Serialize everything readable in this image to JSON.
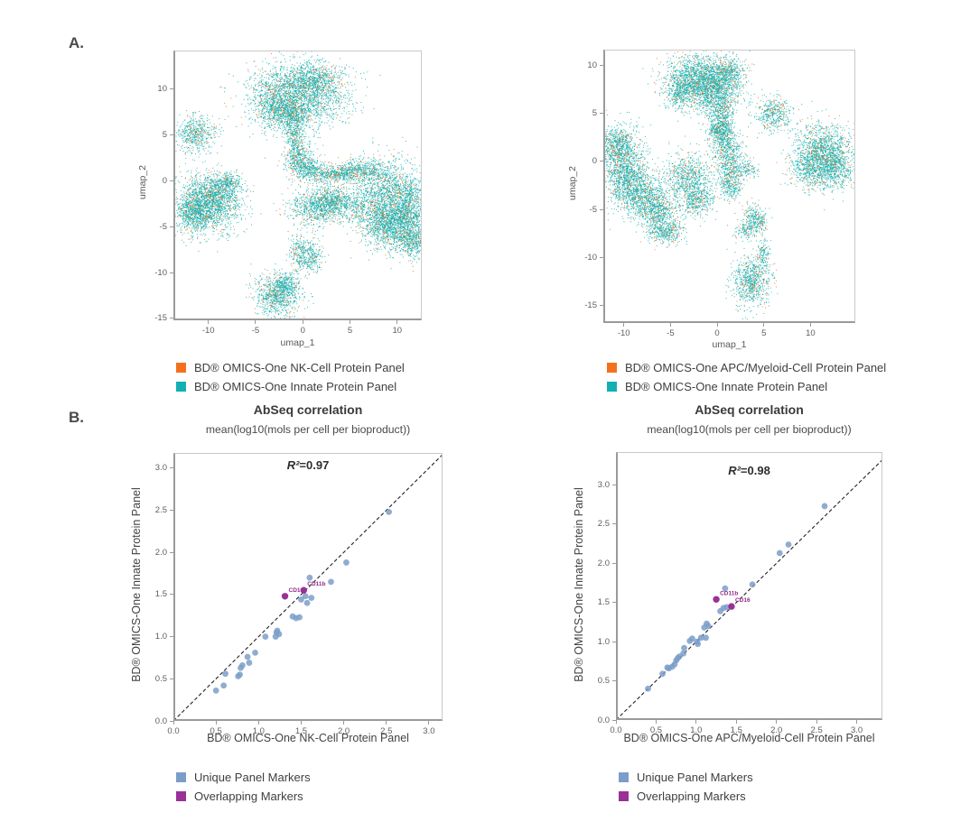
{
  "section_labels": {
    "a": "A.",
    "b": "B."
  },
  "colors": {
    "orange": "#f4701d",
    "teal": "#12b0b2",
    "blue": "#7b9dc9",
    "purple": "#9a3197",
    "marker_label": "#8e2a8a",
    "dashed_line": "#222222"
  },
  "chart_data": [
    {
      "id": "umapA",
      "type": "scatter",
      "kind": "umap",
      "xlabel": "umap_1",
      "ylabel": "umap_2",
      "x_ticks": [
        -10,
        -5,
        0,
        5,
        10
      ],
      "y_ticks": [
        10,
        5,
        0,
        -5,
        -10,
        -15
      ],
      "x_range": [
        -13.7,
        12.6
      ],
      "y_range": [
        -15.2,
        14.2
      ],
      "series": [
        {
          "name": "BD® OMICS-One NK-Cell Protein Panel",
          "color": "#f4701d"
        },
        {
          "name": "BD® OMICS-One Innate Protein Panel",
          "color": "#12b0b2"
        }
      ],
      "orange_fraction": 0.16,
      "point_clusters": [
        [
          -0.5,
          9.5,
          2.6,
          1.7,
          2400
        ],
        [
          1.2,
          11.3,
          1.3,
          0.9,
          450
        ],
        [
          -2.6,
          7.9,
          1.2,
          1.1,
          600
        ],
        [
          -1.0,
          6.6,
          0.7,
          0.9,
          280
        ],
        [
          -11.6,
          5.3,
          1.1,
          0.95,
          520
        ],
        [
          -10.3,
          -2.6,
          1.7,
          1.6,
          1700
        ],
        [
          -11.7,
          -3.7,
          0.9,
          1.0,
          450
        ],
        [
          -9.0,
          -1.2,
          1.0,
          0.9,
          420
        ],
        [
          -8.1,
          -0.2,
          0.7,
          0.45,
          180
        ],
        [
          -0.9,
          4.3,
          0.5,
          1.0,
          240
        ],
        [
          -0.4,
          2.4,
          0.9,
          0.8,
          330
        ],
        [
          0.4,
          1.2,
          0.9,
          0.6,
          300
        ],
        [
          2.6,
          0.7,
          1.2,
          0.55,
          330
        ],
        [
          4.6,
          0.9,
          1.2,
          0.5,
          280
        ],
        [
          6.5,
          1.2,
          1.2,
          0.6,
          320
        ],
        [
          1.5,
          -2.9,
          1.5,
          1.0,
          850
        ],
        [
          3.3,
          -2.2,
          0.9,
          0.7,
          330
        ],
        [
          5.5,
          -3.0,
          1.0,
          0.8,
          240
        ],
        [
          9.0,
          -1.4,
          1.8,
          1.9,
          1500
        ],
        [
          11.4,
          -2.6,
          1.0,
          1.4,
          480
        ],
        [
          8.1,
          -4.6,
          1.2,
          1.2,
          560
        ],
        [
          10.4,
          -5.1,
          1.5,
          1.4,
          1100
        ],
        [
          11.7,
          -6.9,
          0.8,
          0.8,
          300
        ],
        [
          -0.6,
          -7.9,
          0.45,
          1.1,
          200
        ],
        [
          0.9,
          -8.3,
          0.6,
          0.9,
          280
        ],
        [
          -2.8,
          -12.6,
          1.2,
          1.1,
          850
        ],
        [
          -1.9,
          -11.3,
          0.6,
          0.6,
          200
        ]
      ]
    },
    {
      "id": "umapB",
      "type": "scatter",
      "kind": "umap",
      "xlabel": "umap_1",
      "ylabel": "umap_2",
      "x_ticks": [
        -10,
        -5,
        0,
        5,
        10
      ],
      "y_ticks": [
        10,
        5,
        0,
        -5,
        -10,
        -15
      ],
      "x_range": [
        -12.2,
        14.8
      ],
      "y_range": [
        -16.8,
        11.6
      ],
      "series": [
        {
          "name": "BD® OMICS-One APC/Myeloid-Cell Protein Panel",
          "color": "#f4701d"
        },
        {
          "name": "BD® OMICS-One Innate Protein Panel",
          "color": "#12b0b2"
        }
      ],
      "orange_fraction": 0.16,
      "point_clusters": [
        [
          -2.8,
          8.6,
          1.5,
          1.3,
          1150
        ],
        [
          -0.4,
          7.8,
          1.5,
          1.4,
          1300
        ],
        [
          0.9,
          9.4,
          1.0,
          0.8,
          380
        ],
        [
          -4.1,
          7.0,
          0.8,
          0.8,
          280
        ],
        [
          0.3,
          5.5,
          0.7,
          0.9,
          280
        ],
        [
          0.5,
          3.7,
          0.55,
          0.8,
          200
        ],
        [
          5.9,
          4.9,
          0.95,
          0.9,
          430
        ],
        [
          11.3,
          0.9,
          1.6,
          1.6,
          1400
        ],
        [
          12.5,
          -0.6,
          1.0,
          1.2,
          480
        ],
        [
          10.0,
          -0.9,
          1.0,
          1.0,
          380
        ],
        [
          -10.5,
          0.4,
          1.2,
          1.7,
          950
        ],
        [
          -11.2,
          2.0,
          0.8,
          0.8,
          280
        ],
        [
          -9.7,
          -2.3,
          1.2,
          1.3,
          750
        ],
        [
          -7.8,
          -3.9,
          1.3,
          1.2,
          750
        ],
        [
          -6.3,
          -5.6,
          1.0,
          1.0,
          480
        ],
        [
          -5.6,
          -7.4,
          0.95,
          0.7,
          330
        ],
        [
          -3.3,
          -1.8,
          1.2,
          1.4,
          750
        ],
        [
          -2.2,
          -4.0,
          0.9,
          0.9,
          380
        ],
        [
          0.8,
          1.8,
          0.8,
          1.0,
          380
        ],
        [
          1.2,
          -0.5,
          0.85,
          1.2,
          430
        ],
        [
          1.5,
          -2.6,
          0.6,
          0.8,
          230
        ],
        [
          0.0,
          3.3,
          0.6,
          0.6,
          190
        ],
        [
          3.2,
          -0.8,
          0.5,
          0.45,
          110
        ],
        [
          3.8,
          -5.7,
          0.5,
          0.6,
          140
        ],
        [
          3.2,
          -7.1,
          0.7,
          0.6,
          190
        ],
        [
          4.6,
          -6.4,
          0.45,
          0.45,
          90
        ],
        [
          4.9,
          -9.7,
          0.35,
          0.85,
          130
        ],
        [
          3.6,
          -12.6,
          1.0,
          1.3,
          750
        ]
      ]
    },
    {
      "id": "corrA",
      "type": "scatter",
      "kind": "correlation",
      "title": "AbSeq correlation",
      "subtitle": "mean(log10(mols per cell per bioproduct))",
      "annotation": "R²=0.97",
      "xlabel": "BD® OMICS-One NK-Cell Protein Panel",
      "ylabel": "BD® OMICS-One Innate Protein Panel",
      "x_ticks": [
        0.0,
        0.5,
        1.0,
        1.5,
        2.0,
        2.5,
        3.0
      ],
      "y_ticks": [
        0.0,
        0.5,
        1.0,
        1.5,
        2.0,
        2.5,
        3.0
      ],
      "x_range": [
        0,
        3.16
      ],
      "y_range": [
        0,
        3.18
      ],
      "diagonal": "dashed y=x",
      "legend": [
        {
          "label": "Unique Panel Markers",
          "color": "#7b9dc9"
        },
        {
          "label": "Overlapping Markers",
          "color": "#9a3197"
        }
      ],
      "unique_markers": [
        [
          2.53,
          2.48
        ],
        [
          2.03,
          1.88
        ],
        [
          1.85,
          1.65
        ],
        [
          1.6,
          1.7
        ],
        [
          1.62,
          1.46
        ],
        [
          1.55,
          1.48
        ],
        [
          1.5,
          1.44
        ],
        [
          1.57,
          1.4
        ],
        [
          1.4,
          1.24
        ],
        [
          1.44,
          1.22
        ],
        [
          1.48,
          1.23
        ],
        [
          1.22,
          1.07
        ],
        [
          1.24,
          1.03
        ],
        [
          1.21,
          1.05
        ],
        [
          1.2,
          1.0
        ],
        [
          1.08,
          1.0
        ],
        [
          0.96,
          0.81
        ],
        [
          0.87,
          0.76
        ],
        [
          0.89,
          0.69
        ],
        [
          0.81,
          0.66
        ],
        [
          0.79,
          0.63
        ],
        [
          0.61,
          0.56
        ],
        [
          0.76,
          0.53
        ],
        [
          0.78,
          0.55
        ],
        [
          0.59,
          0.42
        ],
        [
          0.5,
          0.36
        ]
      ],
      "overlapping_markers": [
        {
          "label": "CD16",
          "x": 1.31,
          "y": 1.48
        },
        {
          "label": "CD11b",
          "x": 1.53,
          "y": 1.55
        }
      ]
    },
    {
      "id": "corrB",
      "type": "scatter",
      "kind": "correlation",
      "title": "AbSeq correlation",
      "subtitle": "mean(log10(mols per cell per bioproduct))",
      "annotation": "R²=0.98",
      "xlabel": "BD® OMICS-One APC/Myeloid-Cell Protein Panel",
      "ylabel": "BD® OMICS-One Innate Protein Panel",
      "x_ticks": [
        0.0,
        0.5,
        1.0,
        1.5,
        2.0,
        2.5,
        3.0
      ],
      "y_ticks": [
        0.0,
        0.5,
        1.0,
        1.5,
        2.0,
        2.5,
        3.0
      ],
      "x_range": [
        0,
        3.32
      ],
      "y_range": [
        0,
        3.42
      ],
      "diagonal": "dashed y=x",
      "legend": [
        {
          "label": "Unique Panel Markers",
          "color": "#7b9dc9"
        },
        {
          "label": "Overlapping Markers",
          "color": "#9a3197"
        }
      ],
      "unique_markers": [
        [
          2.6,
          2.73
        ],
        [
          2.15,
          2.24
        ],
        [
          2.04,
          2.13
        ],
        [
          1.7,
          1.73
        ],
        [
          1.36,
          1.68
        ],
        [
          1.38,
          1.44
        ],
        [
          1.34,
          1.43
        ],
        [
          1.3,
          1.39
        ],
        [
          1.13,
          1.23
        ],
        [
          1.15,
          1.2
        ],
        [
          1.1,
          1.18
        ],
        [
          1.06,
          1.05
        ],
        [
          1.12,
          1.05
        ],
        [
          0.95,
          1.04
        ],
        [
          0.92,
          1.01
        ],
        [
          1.01,
          1.0
        ],
        [
          1.02,
          0.97
        ],
        [
          0.85,
          0.92
        ],
        [
          0.84,
          0.85
        ],
        [
          0.79,
          0.81
        ],
        [
          0.77,
          0.79
        ],
        [
          0.75,
          0.76
        ],
        [
          0.73,
          0.71
        ],
        [
          0.7,
          0.68
        ],
        [
          0.66,
          0.66
        ],
        [
          0.64,
          0.67
        ],
        [
          0.58,
          0.59
        ],
        [
          0.4,
          0.4
        ]
      ],
      "overlapping_markers": [
        {
          "label": "CD11b",
          "x": 1.25,
          "y": 1.54
        },
        {
          "label": "CD16",
          "x": 1.44,
          "y": 1.45
        }
      ]
    }
  ]
}
